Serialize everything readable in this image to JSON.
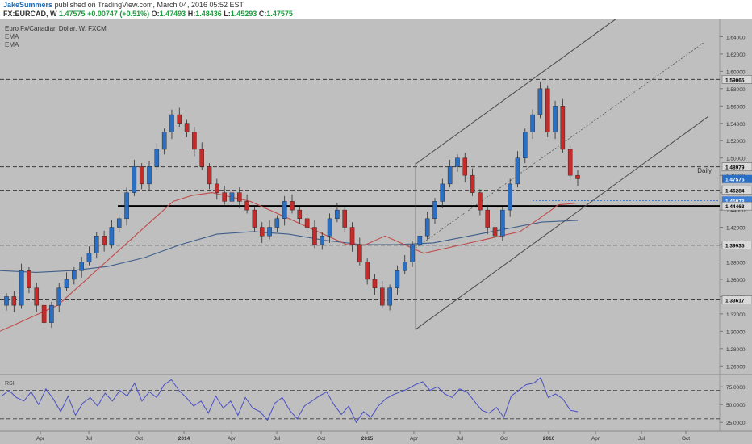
{
  "header": {
    "author": "JakeSummers",
    "published_text": "published on TradingView.com, March 04, 2016 05:52 EST",
    "symbol": "FX:EURCAD, W",
    "last": "1.47575",
    "change": "+0.00747 (+0.51%)",
    "open_label": "O:",
    "open": "1.47493",
    "high_label": "H:",
    "high": "1.48436",
    "low_label": "L:",
    "low": "1.45293",
    "close_label": "C:",
    "close": "1.47575"
  },
  "legend": {
    "title": "Euro Fx/Canadian Dollar, W, FXCM",
    "ema1": "EMA",
    "ema2": "EMA"
  },
  "colors": {
    "background": "#bfbfbf",
    "bull": "#2a6fc4",
    "bear": "#c42b2b",
    "ema_fast": "#c24b4b",
    "ema_slow": "#3f5f8c",
    "rsi": "#4a4fc4",
    "price_tag": "#2a6fc4",
    "support_tag": "#3d7fd6"
  },
  "chart_data": [
    {
      "type": "candlestick",
      "title": "",
      "yaxis_ticks": [
        "1.64000",
        "1.62000",
        "1.60000",
        "1.58000",
        "1.56000",
        "1.54000",
        "1.52000",
        "1.50000",
        "1.48000",
        "1.46000",
        "1.44000",
        "1.42000",
        "1.40000",
        "1.38000",
        "1.36000",
        "1.34000",
        "1.32000",
        "1.30000",
        "1.28000",
        "1.26000"
      ],
      "ylim": [
        1.25,
        1.66
      ],
      "xaxis_ticks": [
        "Apr",
        "Jul",
        "Oct",
        "2014",
        "Apr",
        "Jul",
        "Oct",
        "2015",
        "Apr",
        "Jul",
        "Oct",
        "2016",
        "Apr",
        "Jul",
        "Oct"
      ],
      "close_path": [
        1.34,
        1.33,
        1.37,
        1.35,
        1.33,
        1.31,
        1.33,
        1.35,
        1.36,
        1.37,
        1.38,
        1.39,
        1.41,
        1.4,
        1.42,
        1.43,
        1.46,
        1.49,
        1.47,
        1.49,
        1.51,
        1.53,
        1.55,
        1.54,
        1.53,
        1.51,
        1.49,
        1.47,
        1.46,
        1.45,
        1.46,
        1.45,
        1.44,
        1.42,
        1.41,
        1.42,
        1.43,
        1.45,
        1.44,
        1.43,
        1.42,
        1.4,
        1.41,
        1.43,
        1.44,
        1.42,
        1.4,
        1.38,
        1.36,
        1.35,
        1.33,
        1.35,
        1.37,
        1.38,
        1.4,
        1.41,
        1.43,
        1.45,
        1.47,
        1.49,
        1.5,
        1.48,
        1.46,
        1.44,
        1.42,
        1.41,
        1.44,
        1.47,
        1.5,
        1.53,
        1.55,
        1.58,
        1.53,
        1.56,
        1.51,
        1.48,
        1.476
      ],
      "ema_fast_path": [
        1.3,
        1.31,
        1.32,
        1.33,
        1.35,
        1.37,
        1.39,
        1.41,
        1.43,
        1.45,
        1.457,
        1.46,
        1.455,
        1.45,
        1.44,
        1.43,
        1.42,
        1.41,
        1.4,
        1.4,
        1.41,
        1.4,
        1.39,
        1.395,
        1.4,
        1.405,
        1.41,
        1.415,
        1.43,
        1.446,
        1.448
      ],
      "ema_slow_path": [
        1.37,
        1.368,
        1.37,
        1.375,
        1.385,
        1.4,
        1.412,
        1.415,
        1.412,
        1.405,
        1.4,
        1.4,
        1.402,
        1.41,
        1.418,
        1.426,
        1.428
      ],
      "horizontal_levels": [
        {
          "label": "1.59065",
          "value": 1.59065,
          "style": "dashed"
        },
        {
          "label": "1.48979",
          "value": 1.48979,
          "style": "dashed"
        },
        {
          "label": "1.46284",
          "value": 1.46284,
          "style": "dashed"
        },
        {
          "label": "1.45078",
          "value": 1.45078,
          "style": "dotted-blue"
        },
        {
          "label": "1.44463",
          "value": 1.44463,
          "style": "solid-bold"
        },
        {
          "label": "1.39935",
          "value": 1.39935,
          "style": "dashed"
        },
        {
          "label": "1.33617",
          "value": 1.33617,
          "style": "dashed"
        }
      ],
      "last_price_label": "1.47575",
      "annotation": "Daily",
      "channel_trendlines": true
    },
    {
      "type": "line",
      "title": "RSI",
      "yaxis_ticks": [
        "75.0000",
        "50.0000",
        "25.0000"
      ],
      "ylim": [
        15,
        90
      ],
      "reference_levels": [
        70,
        30
      ],
      "values": [
        62,
        70,
        60,
        55,
        68,
        50,
        72,
        58,
        40,
        62,
        35,
        52,
        60,
        48,
        66,
        55,
        70,
        62,
        80,
        55,
        68,
        60,
        78,
        85,
        70,
        60,
        48,
        55,
        38,
        62,
        45,
        55,
        35,
        60,
        45,
        40,
        28,
        52,
        60,
        42,
        30,
        48,
        55,
        62,
        68,
        50,
        36,
        48,
        25,
        40,
        32,
        48,
        58,
        64,
        68,
        72,
        78,
        82,
        70,
        75,
        65,
        60,
        72,
        68,
        55,
        42,
        38,
        46,
        32,
        62,
        70,
        78,
        80,
        88,
        60,
        65,
        58,
        42,
        40
      ]
    }
  ]
}
